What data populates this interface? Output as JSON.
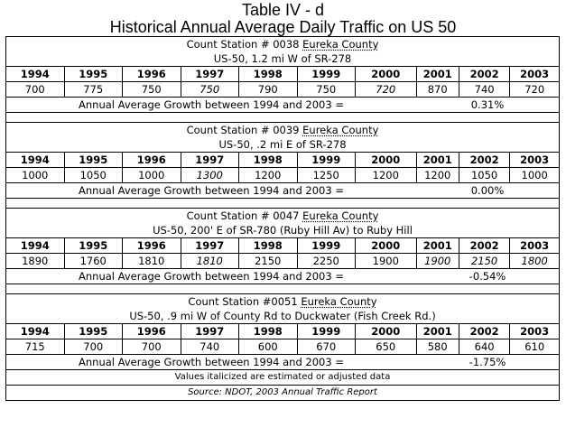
{
  "title_line1": "Table IV - d",
  "title_line2": "Historical Annual Average Daily Traffic on US 50",
  "years": [
    "1994",
    "1995",
    "1996",
    "1997",
    "1998",
    "1999",
    "2000",
    "2001",
    "2002",
    "2003"
  ],
  "growth_label": "Annual Average Growth between 1994 and 2003 =",
  "stations": [
    {
      "station": "Count Station # 0038 Eureka County",
      "route": "US-50, 1.2 mi W of SR-278",
      "values": [
        "700",
        "775",
        "750",
        "750",
        "790",
        "750",
        "720",
        "870",
        "740",
        "720"
      ],
      "italic": [
        false,
        false,
        false,
        true,
        false,
        false,
        true,
        false,
        false,
        false
      ],
      "growth": "0.31%"
    },
    {
      "station": "Count Station # 0039 Eureka County",
      "route": "US-50, .2 mi E of SR-278",
      "values": [
        "1000",
        "1050",
        "1000",
        "1300",
        "1200",
        "1250",
        "1200",
        "1200",
        "1050",
        "1000"
      ],
      "italic": [
        false,
        false,
        false,
        true,
        false,
        false,
        false,
        false,
        false,
        false
      ],
      "growth": "0.00%"
    },
    {
      "station": "Count Station # 0047 Eureka County",
      "route": "US-50, 200' E of SR-780 (Ruby Hill Av) to Ruby Hill",
      "values": [
        "1890",
        "1760",
        "1810",
        "1810",
        "2150",
        "2250",
        "1900",
        "1900",
        "2150",
        "1800"
      ],
      "italic": [
        false,
        false,
        false,
        true,
        false,
        false,
        false,
        true,
        true,
        true
      ],
      "growth": "-0.54%"
    },
    {
      "station": "Count Station #0051 Eureka County",
      "route": "US-50, .9 mi W of County Rd to Duckwater (Fish Creek Rd.)",
      "values": [
        "715",
        "700",
        "700",
        "740",
        "600",
        "670",
        "650",
        "580",
        "640",
        "610"
      ],
      "italic": [
        false,
        false,
        false,
        false,
        false,
        false,
        false,
        false,
        false,
        false
      ],
      "growth": "-1.75%"
    }
  ],
  "note": "Values italicized are estimated or adjusted data",
  "source": "Source: NDOT, 2003 Annual Traffic Report"
}
